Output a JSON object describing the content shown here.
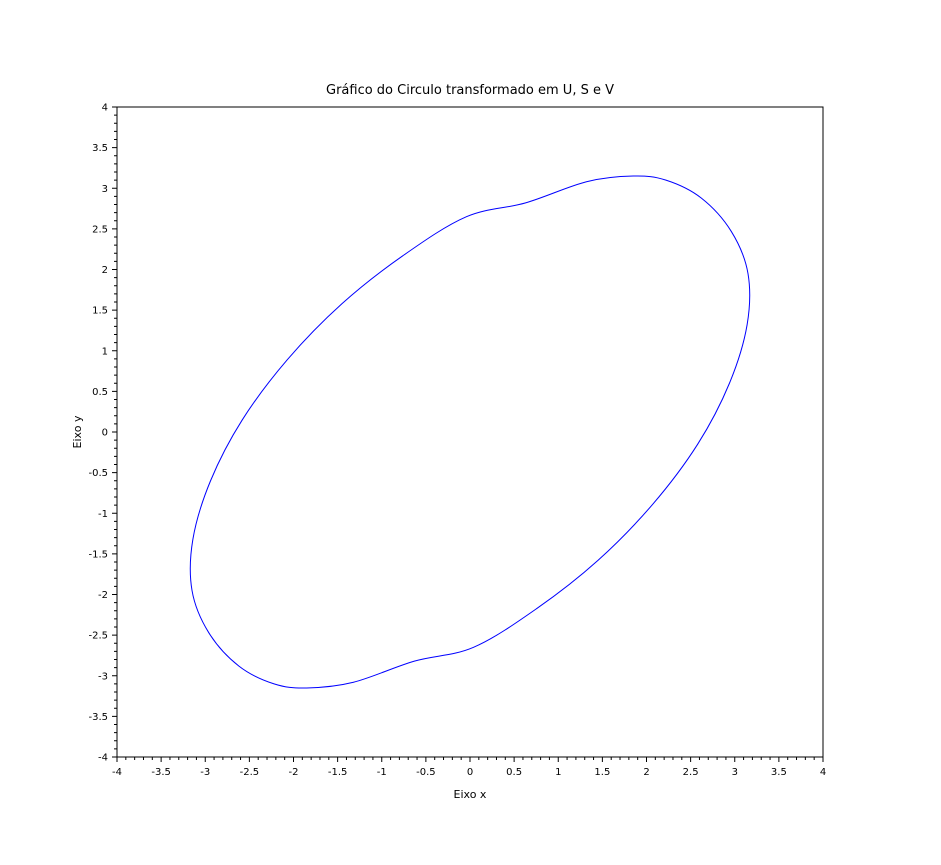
{
  "chart_data": {
    "type": "line",
    "title": "Gráfico do Circulo transformado em U, S e V",
    "xlabel": "Eixo x",
    "ylabel": "Eixo y",
    "xlim": [
      -4,
      4
    ],
    "ylim": [
      -4,
      4
    ],
    "xticks": [
      "-4",
      "-3.5",
      "-3",
      "-2.5",
      "-2",
      "-1.5",
      "-1",
      "-0.5",
      "0",
      "0.5",
      "1",
      "1.5",
      "2",
      "2.5",
      "3",
      "3.5",
      "4"
    ],
    "yticks": [
      "-4",
      "-3.5",
      "-3",
      "-2.5",
      "-2",
      "-1.5",
      "-1",
      "-0.5",
      "0",
      "0.5",
      "1",
      "1.5",
      "2",
      "2.5",
      "3",
      "3.5",
      "4"
    ],
    "grid": false,
    "series": [
      {
        "color": "#0000ff",
        "x": [
          0.63,
          1.32,
          1.85,
          2.22,
          2.62,
          2.96,
          3.15,
          3.14,
          2.94,
          2.58,
          2.07,
          1.45,
          0.76,
          0.04,
          -0.63,
          -1.32,
          -1.85,
          -2.22,
          -2.62,
          -2.96,
          -3.15,
          -3.14,
          -2.94,
          -2.58,
          -2.07,
          -1.45,
          -0.76,
          -0.04,
          0.63
        ],
        "y": [
          2.82,
          3.08,
          3.15,
          3.1,
          2.88,
          2.47,
          1.95,
          1.32,
          0.6,
          -0.15,
          -0.89,
          -1.58,
          -2.17,
          -2.65,
          -2.82,
          -3.08,
          -3.15,
          -3.1,
          -2.88,
          -2.47,
          -1.95,
          -1.32,
          -0.6,
          0.15,
          0.89,
          1.58,
          2.17,
          2.65,
          2.82
        ]
      }
    ]
  }
}
